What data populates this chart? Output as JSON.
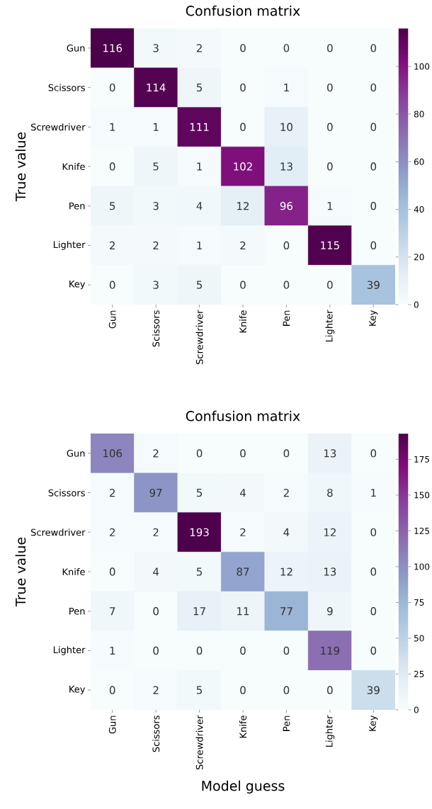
{
  "chart_data": [
    {
      "type": "heatmap",
      "title": "Confusion matrix",
      "ylabel": "True value",
      "categories": [
        "Gun",
        "Scissors",
        "Screwdriver",
        "Knife",
        "Pen",
        "Lighter",
        "Key"
      ],
      "y_categories": [
        "Gun",
        "Scissors",
        "Screwdriver",
        "Knife",
        "Pen",
        "Lighter",
        "Key"
      ],
      "cells": [
        [
          116,
          3,
          2,
          0,
          0,
          0,
          0
        ],
        [
          0,
          114,
          5,
          0,
          1,
          0,
          0
        ],
        [
          1,
          1,
          111,
          0,
          10,
          0,
          0
        ],
        [
          0,
          5,
          1,
          102,
          13,
          0,
          0
        ],
        [
          5,
          3,
          4,
          12,
          96,
          1,
          0
        ],
        [
          2,
          2,
          1,
          2,
          0,
          115,
          0
        ],
        [
          0,
          3,
          5,
          0,
          0,
          0,
          39
        ]
      ],
      "clim": [
        0,
        116
      ],
      "cticks": [
        0,
        20,
        40,
        60,
        80,
        100
      ],
      "data_labels": true
    },
    {
      "type": "heatmap",
      "title": "Confusion matrix",
      "ylabel": "True value",
      "xlabel": "Model guess",
      "categories": [
        "Gun",
        "Scissors",
        "Screwdriver",
        "Knife",
        "Pen",
        "Lighter",
        "Key"
      ],
      "y_categories": [
        "Gun",
        "Scissors",
        "Screwdriver",
        "Knife",
        "Pen",
        "Lighter",
        "Key"
      ],
      "cells": [
        [
          106,
          2,
          0,
          0,
          0,
          13,
          0
        ],
        [
          2,
          97,
          5,
          4,
          2,
          8,
          1
        ],
        [
          2,
          2,
          193,
          2,
          4,
          12,
          0
        ],
        [
          0,
          4,
          5,
          87,
          12,
          13,
          0
        ],
        [
          7,
          0,
          17,
          11,
          77,
          9,
          0
        ],
        [
          1,
          0,
          0,
          0,
          0,
          119,
          0
        ],
        [
          0,
          2,
          5,
          0,
          0,
          0,
          39
        ]
      ],
      "clim": [
        0,
        193
      ],
      "cticks": [
        0,
        25,
        50,
        75,
        100,
        125,
        150,
        175
      ],
      "data_labels": true
    }
  ]
}
